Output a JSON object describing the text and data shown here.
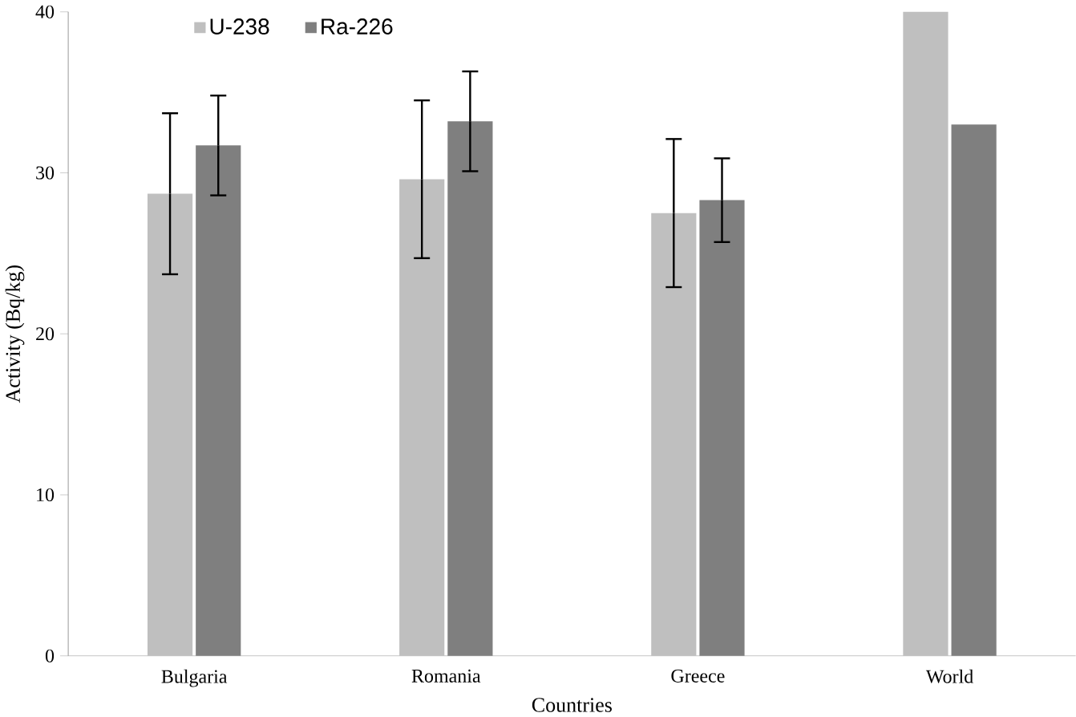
{
  "chart_data": {
    "type": "bar",
    "xlabel": "Countries",
    "ylabel": "Activity (Bq/kg)",
    "categories": [
      "Bulgaria",
      "Romania",
      "Greece",
      "World"
    ],
    "series": [
      {
        "name": "U-238",
        "color": "#bfbfbf",
        "values": [
          28.7,
          29.6,
          27.5,
          40
        ],
        "errors": [
          5.0,
          4.9,
          4.6,
          null
        ]
      },
      {
        "name": "Ra-226",
        "color": "#7f7f7f",
        "values": [
          31.7,
          33.2,
          28.3,
          33.0
        ],
        "errors": [
          3.1,
          3.1,
          2.6,
          null
        ]
      }
    ],
    "ylim": [
      0,
      40
    ],
    "yticks": [
      0,
      10,
      20,
      30,
      40
    ],
    "legend": "top left",
    "grid": false
  }
}
